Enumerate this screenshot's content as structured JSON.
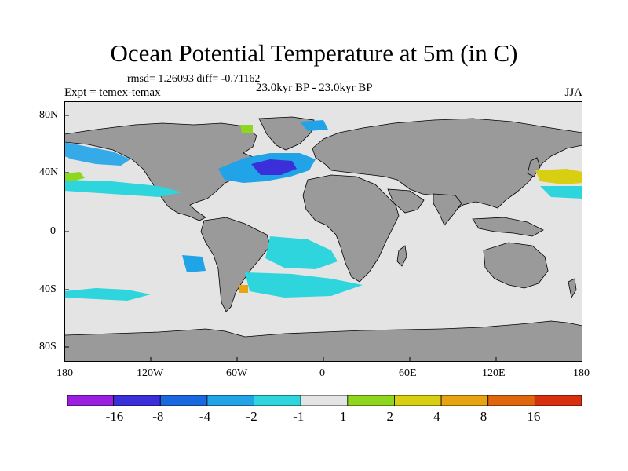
{
  "title": "Ocean Potential Temperature at 5m (in C)",
  "stats": "rmsd= 1.26093 diff= -0.71162",
  "expt": "Expt = temex-temax",
  "period": "23.0kyr BP - 23.0kyr BP",
  "season": "JJA",
  "lat_ticks": [
    "80N",
    "40N",
    "0",
    "40S",
    "80S"
  ],
  "lon_ticks": [
    "180",
    "120W",
    "60W",
    "0",
    "60E",
    "120E",
    "180"
  ],
  "colorbar": {
    "labels": [
      "-16",
      "-8",
      "-4",
      "-2",
      "-1",
      "1",
      "2",
      "4",
      "8",
      "16"
    ],
    "colors": [
      "#9b1fe0",
      "#3a2fd8",
      "#1a68e0",
      "#21a3e8",
      "#2ed5dc",
      "#e4e4e4",
      "#8fd61e",
      "#d8cf12",
      "#e6a412",
      "#e0660e",
      "#d8300e"
    ]
  },
  "colors": {
    "land": "#9a9a9a",
    "ocean_near_zero": "#e4e4e4"
  }
}
